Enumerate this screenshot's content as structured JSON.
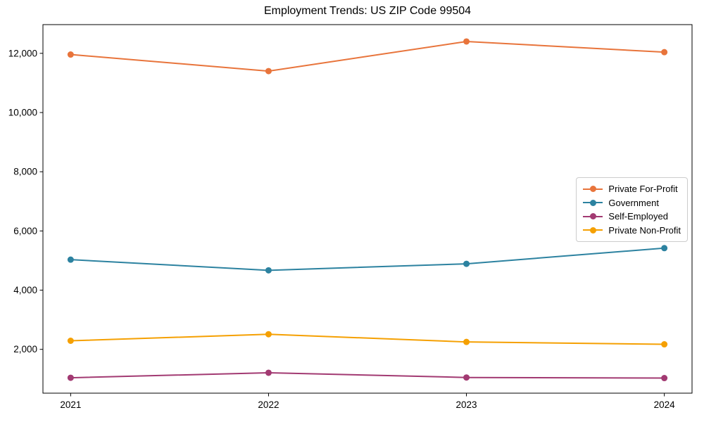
{
  "chart_data": {
    "type": "line",
    "title": "Employment Trends: US ZIP Code 99504",
    "x": [
      2021,
      2022,
      2023,
      2024
    ],
    "x_tick_labels": [
      "2021",
      "2022",
      "2023",
      "2024"
    ],
    "y_tick_values": [
      2000,
      4000,
      6000,
      8000,
      10000,
      12000
    ],
    "y_tick_labels": [
      "2,000",
      "4,000",
      "6,000",
      "8,000",
      "10,000",
      "12,000"
    ],
    "xlim": [
      2020.86,
      2024.14
    ],
    "ylim": [
      520,
      12970
    ],
    "grid": false,
    "legend_position": "center right",
    "series": [
      {
        "name": "Private For-Profit",
        "color": "#e8743b",
        "values": [
          11960,
          11400,
          12400,
          12040
        ]
      },
      {
        "name": "Government",
        "color": "#2c82a0",
        "values": [
          5030,
          4670,
          4890,
          5420
        ]
      },
      {
        "name": "Self-Employed",
        "color": "#a23a72",
        "values": [
          1040,
          1210,
          1050,
          1030
        ]
      },
      {
        "name": "Private Non-Profit",
        "color": "#f5a002",
        "values": [
          2290,
          2510,
          2250,
          2170
        ]
      }
    ]
  }
}
